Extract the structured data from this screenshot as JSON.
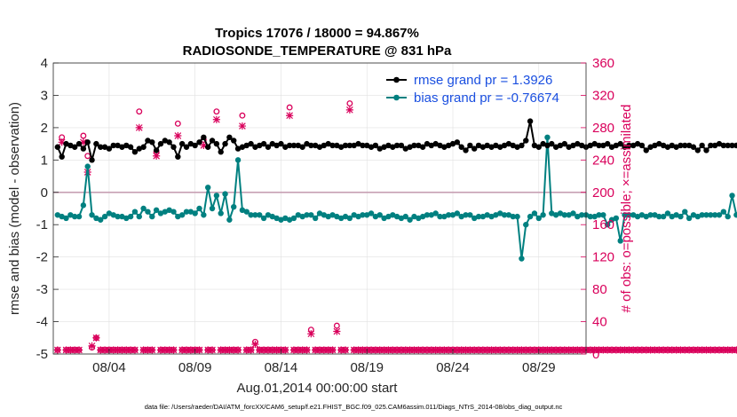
{
  "chart_data": {
    "type": "line",
    "title": "Tropics 17076 / 18000 = 94.867%",
    "subtitle": "RADIOSONDE_TEMPERATURE @ 831 hPa",
    "xlabel": "Aug.01,2014 00:00:00 start",
    "ylabel_left": "rmse and bias (model - observation)",
    "ylabel_right": "# of obs: o=possible; ×=assimilated",
    "ylim_left": [
      -5,
      4
    ],
    "ylim_right": [
      0,
      360
    ],
    "yticks_left": [
      "-5",
      "-4",
      "-3",
      "-2",
      "-1",
      "0",
      "1",
      "2",
      "3",
      "4"
    ],
    "yticks_right": [
      "0",
      "40",
      "80",
      "120",
      "160",
      "200",
      "240",
      "280",
      "320",
      "360"
    ],
    "xticks": [
      "08/04",
      "08/09",
      "08/14",
      "08/19",
      "08/24",
      "08/29"
    ],
    "xtick_days": [
      4,
      9,
      14,
      19,
      24,
      29
    ],
    "xlim_days": [
      0.75,
      31.75
    ],
    "footnote": "data file: /Users/raeder/DAI/ATM_forcXX/CAM6_setup/f.e21.FHIST_BGC.f09_025.CAM6assim.011/Diags_NTrS_2014-08/obs_diag_output.nc",
    "legend": [
      {
        "label": "rmse grand pr = 1.3926",
        "color": "#000000"
      },
      {
        "label": "bias grand pr = -0.76674",
        "color": "#008080"
      }
    ],
    "colors": {
      "rmse": "#000000",
      "bias": "#008080",
      "counts": "#d9005b",
      "zero_line": "#c8a0b4",
      "grid": "#e0e0e0"
    },
    "series": [
      {
        "name": "rmse",
        "axis": "left",
        "start_day": 1.0,
        "step_days": 0.25,
        "values": [
          1.4,
          1.1,
          1.5,
          1.45,
          1.4,
          1.5,
          1.35,
          1.55,
          1.0,
          1.5,
          1.4,
          1.4,
          1.35,
          1.45,
          1.45,
          1.4,
          1.45,
          1.4,
          1.25,
          1.35,
          1.4,
          1.6,
          1.55,
          1.3,
          1.5,
          1.6,
          1.55,
          1.4,
          1.1,
          1.5,
          1.4,
          1.5,
          1.45,
          1.55,
          1.7,
          1.4,
          1.6,
          1.5,
          1.25,
          1.5,
          1.7,
          1.6,
          1.35,
          1.4,
          1.45,
          1.5,
          1.4,
          1.45,
          1.5,
          1.4,
          1.5,
          1.45,
          1.5,
          1.4,
          1.45,
          1.45,
          1.45,
          1.4,
          1.5,
          1.45,
          1.45,
          1.4,
          1.45,
          1.5,
          1.45,
          1.45,
          1.4,
          1.45,
          1.45,
          1.45,
          1.5,
          1.45,
          1.45,
          1.4,
          1.45,
          1.35,
          1.4,
          1.45,
          1.4,
          1.45,
          1.45,
          1.35,
          1.4,
          1.45,
          1.45,
          1.4,
          1.5,
          1.45,
          1.5,
          1.45,
          1.4,
          1.45,
          1.5,
          1.55,
          1.4,
          1.3,
          1.45,
          1.35,
          1.45,
          1.4,
          1.45,
          1.4,
          1.45,
          1.4,
          1.45,
          1.5,
          1.45,
          1.4,
          1.45,
          1.6,
          2.2,
          1.45,
          1.4,
          1.5,
          1.45,
          1.5,
          1.4,
          1.45,
          1.5,
          1.4,
          1.45,
          1.5,
          1.45,
          1.4,
          1.45,
          1.5,
          1.45,
          1.45,
          1.5,
          1.4,
          1.45,
          1.5,
          1.4,
          1.45,
          1.45,
          1.5,
          1.45,
          1.3,
          1.4,
          1.45,
          1.5,
          1.45,
          1.4,
          1.45,
          1.4,
          1.45,
          1.45,
          1.45,
          1.4,
          1.3,
          1.45,
          1.3,
          1.45,
          1.45,
          1.5,
          1.45,
          1.45,
          1.45,
          1.45,
          1.35,
          1.45,
          1.5,
          1.45,
          1.5,
          1.45,
          1.45,
          1.4,
          1.45,
          1.5,
          1.45,
          1.45,
          1.45,
          1.3,
          1.25,
          1.3,
          1.25,
          1.5,
          1.45,
          1.4,
          1.3,
          1.45,
          1.4,
          1.35,
          1.45,
          1.25,
          1.4,
          1.35,
          1.5,
          1.3,
          1.4,
          1.4,
          1.3,
          1.4,
          1.3,
          1.35,
          1.3,
          1.3,
          1.45,
          1.4,
          1.3,
          1.25,
          1.3,
          1.3,
          1.45,
          1.25,
          1.35,
          1.5,
          1.45,
          1.3,
          1.4,
          1.3,
          1.3,
          1.3,
          1.3,
          1.45,
          1.3,
          1.3,
          1.3,
          1.4,
          1.25,
          1.3,
          1.45,
          1.3,
          1.25,
          1.25,
          1.3,
          1.3,
          1.3,
          1.45,
          1.25,
          1.3,
          1.4,
          1.4,
          1.3,
          1.25,
          1.3,
          1.3,
          1.35,
          1.25,
          1.3,
          1.3,
          1.3,
          1.25,
          1.25,
          1.3,
          1.5,
          1.3,
          1.3,
          1.25,
          1.3,
          1.3,
          1.35,
          1.25,
          1.25,
          1.3,
          1.25,
          1.3,
          1.3,
          1.3,
          1.25,
          1.3,
          1.3,
          1.3,
          1.3,
          1.3,
          1.3,
          1.45,
          1.3,
          1.45,
          1.3,
          1.25,
          1.3,
          1.25,
          1.3,
          1.3,
          1.25,
          1.3,
          1.5,
          1.45,
          1.4,
          1.25,
          1.3,
          1.3,
          1.35,
          1.25,
          1.3,
          1.5,
          1.3,
          1.25,
          1.3,
          1.25,
          1.3,
          1.5,
          1.3,
          1.3,
          1.3,
          1.25,
          1.3,
          1.35,
          1.3,
          1.3,
          1.3,
          1.5,
          1.3,
          1.25,
          1.3,
          1.3,
          1.3,
          1.25,
          1.3,
          1.3,
          1.3,
          1.3,
          1.25,
          1.5,
          1.3,
          1.3,
          1.3,
          1.3,
          1.3,
          1.3,
          1.25,
          1.3,
          1.3,
          1.3,
          1.25,
          1.3,
          1.3,
          1.3,
          1.25,
          1.3,
          1.3,
          1.3,
          1.5,
          1.3,
          1.3,
          1.25,
          1.3,
          1.3,
          1.3,
          1.3,
          1.25,
          1.3,
          1.3,
          1.3,
          1.3,
          1.25,
          1.3,
          1.3,
          1.5,
          1.3,
          1.25,
          1.3,
          1.3,
          1.3,
          1.25
        ]
      },
      {
        "name": "bias",
        "axis": "left",
        "start_day": 1.0,
        "step_days": 0.25,
        "values": [
          -0.7,
          -0.75,
          -0.8,
          -0.7,
          -0.75,
          -0.75,
          -0.4,
          0.8,
          -0.7,
          -0.8,
          -0.85,
          -0.75,
          -0.65,
          -0.7,
          -0.75,
          -0.75,
          -0.8,
          -0.75,
          -0.6,
          -0.75,
          -0.5,
          -0.6,
          -0.75,
          -0.55,
          -0.65,
          -0.6,
          -0.55,
          -0.6,
          -0.75,
          -0.7,
          -0.6,
          -0.6,
          -0.65,
          -0.5,
          -0.7,
          0.15,
          -0.5,
          -0.1,
          -0.65,
          -0.05,
          -0.85,
          -0.45,
          1.0,
          -0.55,
          -0.6,
          -0.7,
          -0.7,
          -0.7,
          -0.8,
          -0.7,
          -0.75,
          -0.8,
          -0.85,
          -0.8,
          -0.85,
          -0.8,
          -0.7,
          -0.75,
          -0.7,
          -0.7,
          -0.8,
          -0.65,
          -0.7,
          -0.75,
          -0.7,
          -0.75,
          -0.8,
          -0.75,
          -0.8,
          -0.7,
          -0.75,
          -0.7,
          -0.7,
          -0.65,
          -0.75,
          -0.7,
          -0.8,
          -0.75,
          -0.7,
          -0.75,
          -0.8,
          -0.75,
          -0.85,
          -0.75,
          -0.8,
          -0.75,
          -0.7,
          -0.7,
          -0.65,
          -0.75,
          -0.75,
          -0.7,
          -0.7,
          -0.65,
          -0.75,
          -0.7,
          -0.7,
          -0.8,
          -0.75,
          -0.75,
          -0.7,
          -0.75,
          -0.7,
          -0.65,
          -0.7,
          -0.7,
          -0.75,
          -0.75,
          -2.05,
          -1.0,
          -0.75,
          -0.65,
          -0.8,
          -0.7,
          1.7,
          -0.65,
          -0.7,
          -0.65,
          -0.7,
          -0.7,
          -0.65,
          -0.75,
          -0.7,
          -0.7,
          -0.75,
          -0.75,
          -0.7,
          -0.7,
          -1.0,
          -0.85,
          -0.8,
          -1.5,
          -0.7,
          -0.7,
          -0.7,
          -0.75,
          -0.7,
          -0.75,
          -0.7,
          -0.7,
          -0.75,
          -0.75,
          -0.65,
          -0.75,
          -0.7,
          -0.75,
          -0.6,
          -0.8,
          -0.7,
          -0.75,
          -0.7,
          -0.7,
          -0.7,
          -0.7,
          -0.7,
          -0.6,
          -0.75,
          -0.1,
          -0.7,
          -0.7,
          -0.6,
          -0.65,
          -0.75,
          -0.7,
          -0.8,
          -0.7,
          -0.75,
          -0.7,
          -0.7,
          -0.7
        ]
      },
      {
        "name": "possible",
        "axis": "right",
        "marker": "o",
        "start_day": 1.0,
        "step_days": 0.25,
        "values": [
          5,
          268,
          5,
          5,
          5,
          5,
          270,
          245,
          8,
          20,
          5,
          5,
          5,
          5,
          5,
          5,
          5,
          5,
          5,
          300,
          5,
          5,
          5,
          250,
          5,
          5,
          5,
          5,
          285,
          5,
          5,
          5,
          5,
          5,
          265,
          5,
          5,
          300,
          5,
          5,
          5,
          5,
          5,
          295,
          5,
          5,
          15,
          5,
          5,
          5,
          5,
          5,
          5,
          5,
          305,
          5,
          5,
          5,
          5,
          30,
          5,
          5,
          5,
          5,
          5,
          35,
          5,
          5,
          310,
          5,
          5,
          5,
          5,
          5,
          5,
          5,
          5,
          5,
          5,
          5,
          5,
          5,
          5,
          5,
          5,
          5,
          5,
          5,
          5,
          5,
          5,
          5,
          5,
          5,
          5,
          5,
          5,
          5,
          5,
          5,
          5,
          5,
          5,
          5,
          5,
          5,
          5,
          5,
          5,
          5,
          5,
          5,
          5,
          5,
          5,
          5,
          5,
          5,
          5,
          5,
          5,
          5,
          5,
          5,
          5,
          5,
          5,
          5,
          5,
          5,
          5,
          5,
          5,
          5,
          5,
          5,
          5,
          5,
          5,
          5,
          5,
          5,
          5,
          5,
          5,
          5,
          5,
          5,
          5,
          5,
          5,
          5,
          5,
          5,
          5,
          5,
          5,
          5,
          5,
          5,
          5,
          5,
          5,
          5,
          5,
          5,
          5,
          5,
          5,
          5,
          5,
          5
        ]
      },
      {
        "name": "assimilated",
        "axis": "right",
        "marker": "x",
        "start_day": 1.0,
        "step_days": 0.25,
        "values": [
          5,
          262,
          5,
          5,
          5,
          5,
          262,
          225,
          10,
          20,
          5,
          5,
          5,
          5,
          5,
          5,
          5,
          5,
          5,
          280,
          5,
          5,
          5,
          245,
          5,
          5,
          5,
          5,
          270,
          5,
          5,
          5,
          5,
          5,
          258,
          5,
          5,
          290,
          5,
          5,
          5,
          5,
          5,
          282,
          5,
          5,
          12,
          5,
          5,
          5,
          5,
          5,
          5,
          5,
          295,
          5,
          5,
          5,
          5,
          25,
          5,
          5,
          5,
          5,
          5,
          28,
          5,
          5,
          302,
          5,
          5,
          5,
          5,
          5,
          5,
          5,
          5,
          5,
          5,
          5,
          5,
          5,
          5,
          5,
          5,
          5,
          5,
          5,
          5,
          5,
          5,
          5,
          5,
          5,
          5,
          5,
          5,
          5,
          5,
          5,
          5,
          5,
          5,
          5,
          5,
          5,
          5,
          5,
          5,
          5,
          5,
          5,
          5,
          5,
          5,
          5,
          5,
          5,
          5,
          5,
          5,
          5,
          5,
          5,
          5,
          5,
          5,
          5,
          5,
          5,
          5,
          5,
          5,
          5,
          5,
          5,
          5,
          5,
          5,
          5,
          5,
          5,
          5,
          5,
          5,
          5,
          5,
          5,
          5,
          5,
          5,
          5,
          5,
          5,
          5,
          5,
          5,
          5,
          5,
          5,
          5,
          5,
          5,
          5,
          5,
          5,
          5,
          5,
          5,
          5,
          5
        ]
      }
    ]
  }
}
